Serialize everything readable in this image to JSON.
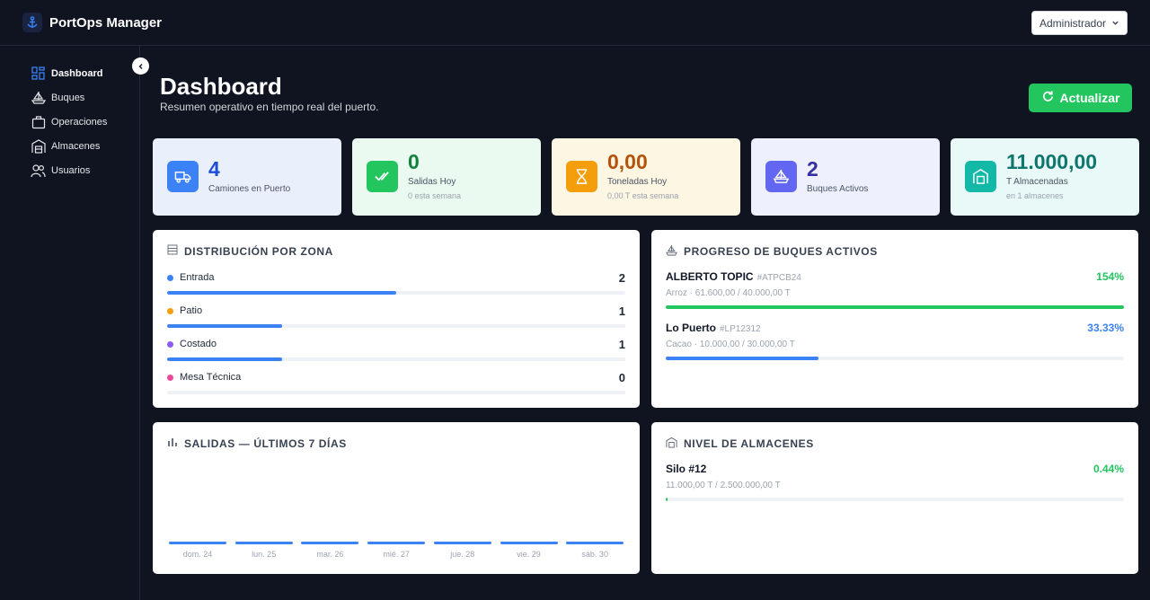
{
  "app": {
    "title": "PortOps Manager",
    "user_label": "Administrador"
  },
  "sidebar": {
    "items": [
      {
        "label": "Dashboard",
        "icon": "grid-icon",
        "active": true
      },
      {
        "label": "Buques",
        "icon": "ship-icon",
        "active": false
      },
      {
        "label": "Operaciones",
        "icon": "briefcase-icon",
        "active": false
      },
      {
        "label": "Almacenes",
        "icon": "warehouse-icon",
        "active": false
      },
      {
        "label": "Usuarios",
        "icon": "users-icon",
        "active": false
      }
    ]
  },
  "header": {
    "title": "Dashboard",
    "subtitle": "Resumen operativo en tiempo real del puerto.",
    "refresh_label": "Actualizar"
  },
  "stats": [
    {
      "value": "4",
      "label": "Camiones en Puerto",
      "sub": "",
      "icon": "truck-icon",
      "bg": "#eaf0fb",
      "accent": "#3b82f6",
      "value_color": "#1d4ed8"
    },
    {
      "value": "0",
      "label": "Salidas Hoy",
      "sub": "0 esta semana",
      "icon": "check-double-icon",
      "bg": "#eafaf0",
      "accent": "#22c55e",
      "value_color": "#15803d"
    },
    {
      "value": "0,00",
      "label": "Toneladas Hoy",
      "sub": "0,00 T esta semana",
      "icon": "hourglass-icon",
      "bg": "#fdf6e3",
      "accent": "#f59e0b",
      "value_color": "#b45309"
    },
    {
      "value": "2",
      "label": "Buques Activos",
      "sub": "",
      "icon": "ship-icon",
      "bg": "#eef0fd",
      "accent": "#6366f1",
      "value_color": "#3730a3"
    },
    {
      "value": "11.000,00",
      "label": "T Almacenadas",
      "sub": "en 1 almacenes",
      "icon": "warehouse-icon",
      "bg": "#e8f9f7",
      "accent": "#14b8a6",
      "value_color": "#0f766e"
    }
  ],
  "zones": {
    "title": "DISTRIBUCIÓN POR ZONA",
    "max": 4,
    "items": [
      {
        "label": "Entrada",
        "count": "2",
        "value": 2,
        "color": "#3b82f6"
      },
      {
        "label": "Patio",
        "count": "1",
        "value": 1,
        "color": "#f59e0b"
      },
      {
        "label": "Costado",
        "count": "1",
        "value": 1,
        "color": "#8b5cf6"
      },
      {
        "label": "Mesa Técnica",
        "count": "0",
        "value": 0,
        "color": "#ec4899"
      }
    ]
  },
  "ships": {
    "title": "PROGRESO DE BUQUES ACTIVOS",
    "items": [
      {
        "name": "ALBERTO TOPIC",
        "code": "#ATPCB24",
        "pct": "154%",
        "progress": 1.0,
        "detail": "Arroz · 61.600,00 / 40.000,00 T",
        "color": "#22c55e"
      },
      {
        "name": "Lo Puerto",
        "code": "#LP12312",
        "pct": "33.33%",
        "progress": 0.3333,
        "detail": "Cacao · 10.000,00 / 30.000,00 T",
        "color": "#3b82f6"
      }
    ]
  },
  "departures": {
    "title": "SALIDAS — ÚLTIMOS 7 DÍAS",
    "days": [
      "dom. 24",
      "lun. 25",
      "mar. 26",
      "mié. 27",
      "jue. 28",
      "vie. 29",
      "sáb. 30"
    ],
    "values": [
      0,
      0,
      0,
      0,
      0,
      0,
      0
    ]
  },
  "warehouses": {
    "title": "NIVEL DE ALMACENES",
    "items": [
      {
        "name": "Silo #12",
        "pct": "0.44%",
        "progress": 0.0044,
        "detail": "11.000,00 T / 2.500.000,00 T",
        "color": "#22c55e"
      }
    ]
  }
}
